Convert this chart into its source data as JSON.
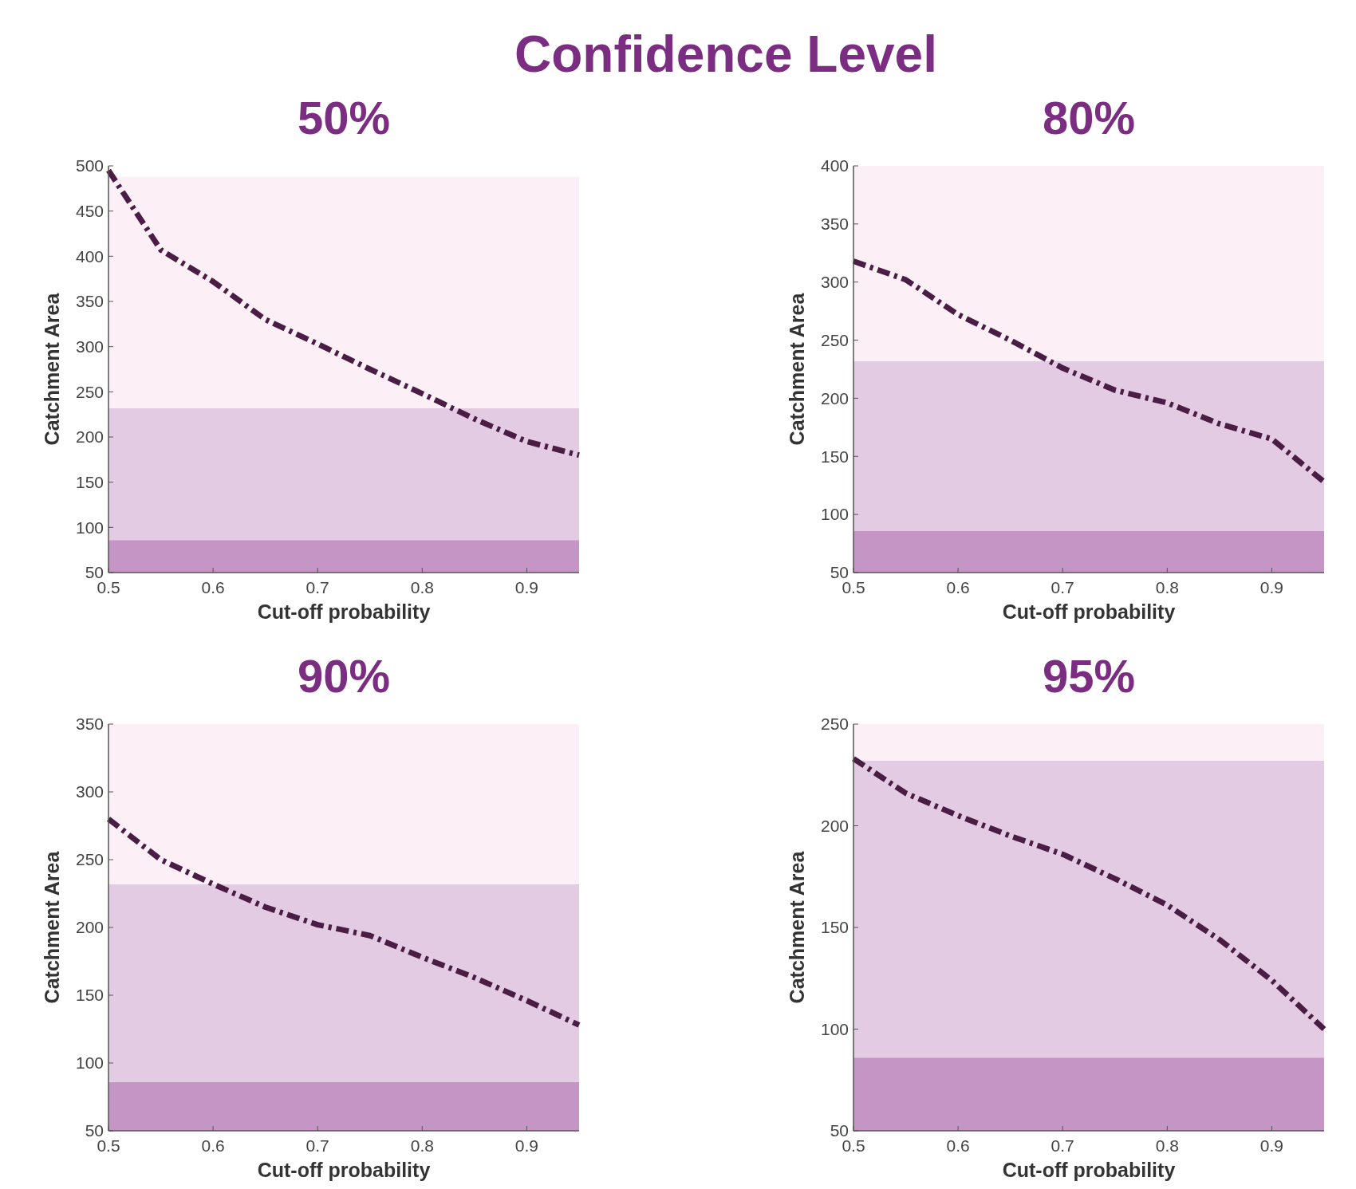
{
  "chart_data": [
    {
      "type": "line",
      "title": "50%",
      "annotations": [
        "Confidence Level"
      ],
      "xlabel": "Cut-off probability",
      "ylabel": "Catchment Area",
      "xlim": [
        0.5,
        0.95
      ],
      "ylim": [
        50,
        500
      ],
      "xticks": [
        0.5,
        0.6,
        0.7,
        0.8,
        0.9
      ],
      "yticks": [
        50,
        100,
        150,
        200,
        250,
        300,
        350,
        400,
        450,
        500
      ],
      "line_style": "dashed",
      "grid": false,
      "bands": [
        {
          "axis": "y",
          "from": 50,
          "to": 86,
          "color": "#c595c5"
        },
        {
          "axis": "y",
          "from": 86,
          "to": 232,
          "color": "#e3cbe3"
        },
        {
          "axis": "y",
          "from": 232,
          "to": 488,
          "color": "#fcf0f6"
        }
      ],
      "x": [
        0.5,
        0.55,
        0.6,
        0.65,
        0.7,
        0.75,
        0.8,
        0.85,
        0.9,
        0.95
      ],
      "series": [
        {
          "color": "#4a1d44",
          "values": [
            495,
            407,
            372,
            330,
            303,
            275,
            248,
            220,
            195,
            180
          ]
        }
      ]
    },
    {
      "type": "line",
      "title": "80%",
      "xlabel": "Cut-off probability",
      "ylabel": "Catchment Area",
      "xlim": [
        0.5,
        0.95
      ],
      "ylim": [
        50,
        400
      ],
      "xticks": [
        0.5,
        0.6,
        0.7,
        0.8,
        0.9
      ],
      "yticks": [
        50,
        100,
        150,
        200,
        250,
        300,
        350,
        400
      ],
      "line_style": "dashed",
      "grid": false,
      "bands": [
        {
          "axis": "y",
          "from": 50,
          "to": 86,
          "color": "#c595c5"
        },
        {
          "axis": "y",
          "from": 86,
          "to": 232,
          "color": "#e3cbe3"
        },
        {
          "axis": "y",
          "from": 232,
          "to": 400,
          "color": "#fcf0f6"
        }
      ],
      "x": [
        0.5,
        0.55,
        0.6,
        0.65,
        0.7,
        0.75,
        0.8,
        0.85,
        0.9,
        0.95
      ],
      "series": [
        {
          "color": "#4a1d44",
          "values": [
            318,
            302,
            272,
            250,
            226,
            207,
            196,
            178,
            165,
            128
          ]
        }
      ]
    },
    {
      "type": "line",
      "title": "90%",
      "xlabel": "Cut-off probability",
      "ylabel": "Catchment Area",
      "xlim": [
        0.5,
        0.95
      ],
      "ylim": [
        50,
        350
      ],
      "xticks": [
        0.5,
        0.6,
        0.7,
        0.8,
        0.9
      ],
      "yticks": [
        50,
        100,
        150,
        200,
        250,
        300,
        350
      ],
      "line_style": "dashed",
      "grid": false,
      "bands": [
        {
          "axis": "y",
          "from": 50,
          "to": 86,
          "color": "#c595c5"
        },
        {
          "axis": "y",
          "from": 86,
          "to": 232,
          "color": "#e3cbe3"
        },
        {
          "axis": "y",
          "from": 232,
          "to": 350,
          "color": "#fcf0f6"
        }
      ],
      "x": [
        0.5,
        0.55,
        0.6,
        0.65,
        0.7,
        0.75,
        0.8,
        0.85,
        0.9,
        0.95
      ],
      "series": [
        {
          "color": "#4a1d44",
          "values": [
            280,
            250,
            232,
            215,
            202,
            194,
            178,
            163,
            146,
            128
          ]
        }
      ]
    },
    {
      "type": "line",
      "title": "95%",
      "xlabel": "Cut-off probability",
      "ylabel": "Catchment Area",
      "xlim": [
        0.5,
        0.95
      ],
      "ylim": [
        50,
        250
      ],
      "xticks": [
        0.5,
        0.6,
        0.7,
        0.8,
        0.9
      ],
      "yticks": [
        50,
        100,
        150,
        200,
        250
      ],
      "line_style": "dashed",
      "grid": false,
      "bands": [
        {
          "axis": "y",
          "from": 50,
          "to": 86,
          "color": "#c595c5"
        },
        {
          "axis": "y",
          "from": 86,
          "to": 232,
          "color": "#e3cbe3"
        },
        {
          "axis": "y",
          "from": 232,
          "to": 250,
          "color": "#fcf0f6"
        }
      ],
      "x": [
        0.5,
        0.55,
        0.6,
        0.65,
        0.7,
        0.75,
        0.8,
        0.85,
        0.9,
        0.95
      ],
      "series": [
        {
          "color": "#4a1d44",
          "values": [
            233,
            216,
            205,
            195,
            186,
            174,
            161,
            144,
            124,
            100
          ]
        }
      ]
    }
  ]
}
